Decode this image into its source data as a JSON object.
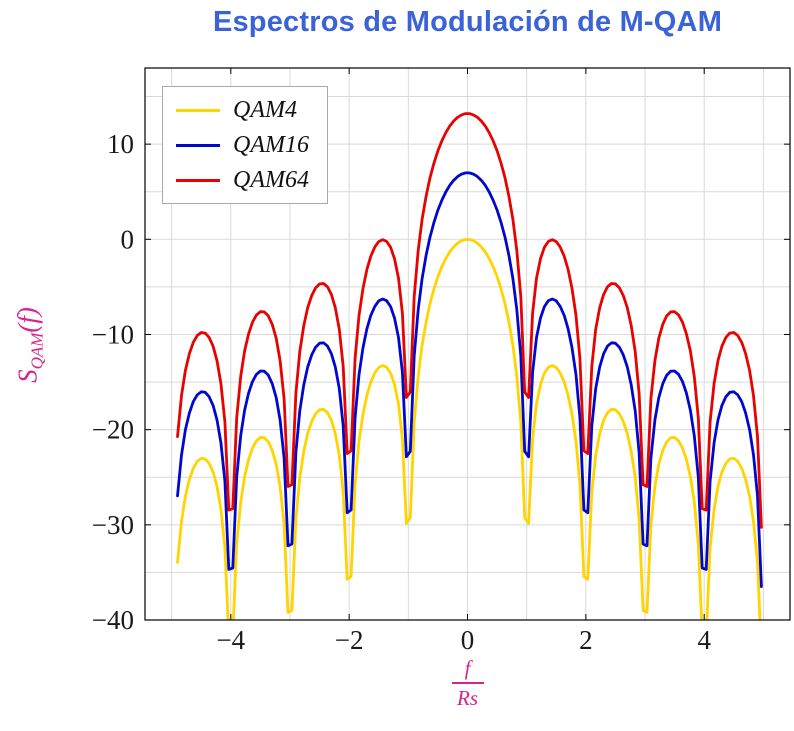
{
  "title": "Espectros de Modulación de M-QAM",
  "colors": {
    "title": "#3b63d8",
    "axis_label": "#d6248c",
    "grid": "#d9d9d9",
    "frame": "#000000",
    "tick_text": "#1a1a1a",
    "legend_border": "#a9a9a9",
    "background": "#ffffff"
  },
  "y_axis": {
    "label_main": "S",
    "label_sub": "QAM",
    "label_suffix": "(f)"
  },
  "x_axis": {
    "label_numerator": "f",
    "label_denominator": "Rs"
  },
  "chart_data": {
    "type": "line",
    "title": "Espectros de Modulación de M-QAM",
    "xlabel": "f/Rs",
    "ylabel": "S_QAM(f)",
    "xlim": [
      -5.45,
      5.45
    ],
    "ylim": [
      -40,
      18
    ],
    "x_ticks": [
      -4,
      -2,
      0,
      2,
      4
    ],
    "y_ticks": [
      10,
      0,
      -10,
      -20,
      -30,
      -40
    ],
    "grid": true,
    "x_grid_step": 1,
    "y_grid_step": 5,
    "legend_position": "top-left",
    "model": "y_dB = offset_dB + 20*log10(|sinc(x)|), sinc(u) = sin(pi*u)/(pi*u), x = f/Rs",
    "sampling": {
      "x_start": -4.9,
      "x_step": 0.0666666667,
      "n_points": 149
    },
    "nulls_x": [
      -4,
      -3,
      -2,
      -1,
      1,
      2,
      3,
      4
    ],
    "sidelobe_peaks_x": [
      1.43,
      2.46,
      3.47,
      4.48
    ],
    "sidelobe_peaks_dB_relative": [
      -13.3,
      -17.8,
      -20.8,
      -23.0
    ],
    "series": [
      {
        "name": "QAM4",
        "color": "#ffd400",
        "offset_dB": 0,
        "peak_dB": 0,
        "endpoint_dB_at_4p9": -33.9
      },
      {
        "name": "QAM16",
        "color": "#0008cd",
        "offset_dB": 6.99,
        "peak_dB": 7,
        "endpoint_dB_at_4p9": -26.9
      },
      {
        "name": "QAM64",
        "color": "#e60300",
        "offset_dB": 13.22,
        "peak_dB": 13.2,
        "endpoint_dB_at_4p9": -20.7
      }
    ]
  }
}
